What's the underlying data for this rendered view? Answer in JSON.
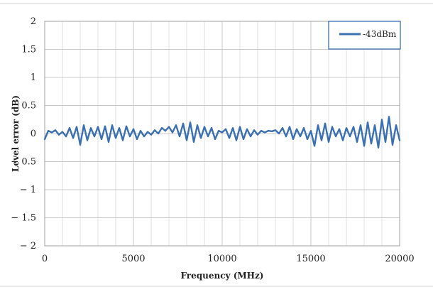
{
  "chart_data": {
    "type": "line",
    "xlabel": "Frequency (MHz)",
    "ylabel": "Level error (dB)",
    "xlim": [
      0,
      20000
    ],
    "ylim": [
      -2,
      2
    ],
    "x_ticks": [
      0,
      5000,
      10000,
      15000,
      20000
    ],
    "y_ticks": [
      2,
      1.5,
      1,
      0.5,
      0,
      -0.5,
      -1,
      -1.5,
      -2
    ],
    "x_tick_labels": [
      "0",
      "5000",
      "10000",
      "15000",
      "20000"
    ],
    "y_tick_labels": [
      "2",
      "1.5",
      "1",
      "0.5",
      "0",
      "− 0.5",
      "− 1",
      "− 1.5",
      "− 2"
    ],
    "x_minor_step": 1000,
    "grid": true,
    "legend_position": "top-right",
    "series_color": "#3a6fb0",
    "series": [
      {
        "name": "-43dBm",
        "x": [
          0,
          200,
          400,
          600,
          800,
          1000,
          1200,
          1400,
          1600,
          1800,
          2000,
          2200,
          2400,
          2600,
          2800,
          3000,
          3200,
          3400,
          3600,
          3800,
          4000,
          4200,
          4400,
          4600,
          4800,
          5000,
          5200,
          5400,
          5600,
          5800,
          6000,
          6200,
          6400,
          6600,
          6800,
          7000,
          7200,
          7400,
          7600,
          7800,
          8000,
          8200,
          8400,
          8600,
          8800,
          9000,
          9200,
          9400,
          9600,
          9800,
          10000,
          10200,
          10400,
          10600,
          10800,
          11000,
          11200,
          11400,
          11600,
          11800,
          12000,
          12200,
          12400,
          12600,
          12800,
          13000,
          13200,
          13400,
          13600,
          13800,
          14000,
          14200,
          14400,
          14600,
          14800,
          15000,
          15200,
          15400,
          15600,
          15800,
          16000,
          16200,
          16400,
          16600,
          16800,
          17000,
          17200,
          17400,
          17600,
          17800,
          18000,
          18200,
          18400,
          18600,
          18800,
          19000,
          19200,
          19400,
          19600,
          19800,
          20000
        ],
        "values": [
          -0.1,
          0.05,
          0.02,
          0.06,
          -0.02,
          0.03,
          -0.05,
          0.1,
          -0.08,
          0.12,
          -0.2,
          0.15,
          -0.12,
          0.1,
          -0.05,
          0.12,
          -0.1,
          0.13,
          -0.15,
          0.15,
          -0.08,
          0.1,
          -0.12,
          0.13,
          -0.05,
          0.08,
          -0.1,
          0.05,
          -0.05,
          0.03,
          -0.02,
          0.06,
          0.0,
          0.1,
          0.05,
          0.12,
          0.02,
          0.15,
          -0.05,
          0.18,
          -0.12,
          0.2,
          -0.15,
          0.15,
          -0.08,
          0.12,
          -0.05,
          0.1,
          -0.1,
          0.05,
          0.02,
          0.08,
          -0.08,
          0.1,
          -0.12,
          0.12,
          -0.1,
          0.08,
          -0.05,
          0.06,
          -0.02,
          0.05,
          0.02,
          0.05,
          0.04,
          0.06,
          0.0,
          0.1,
          -0.05,
          0.12,
          -0.1,
          0.08,
          -0.05,
          0.1,
          -0.1,
          0.05,
          -0.22,
          0.15,
          -0.12,
          0.18,
          -0.15,
          0.12,
          -0.05,
          0.08,
          -0.12,
          0.1,
          -0.05,
          0.12,
          -0.15,
          0.15,
          -0.22,
          0.2,
          -0.18,
          0.15,
          -0.25,
          0.25,
          -0.15,
          0.3,
          -0.2,
          0.15,
          -0.12
        ]
      }
    ]
  }
}
